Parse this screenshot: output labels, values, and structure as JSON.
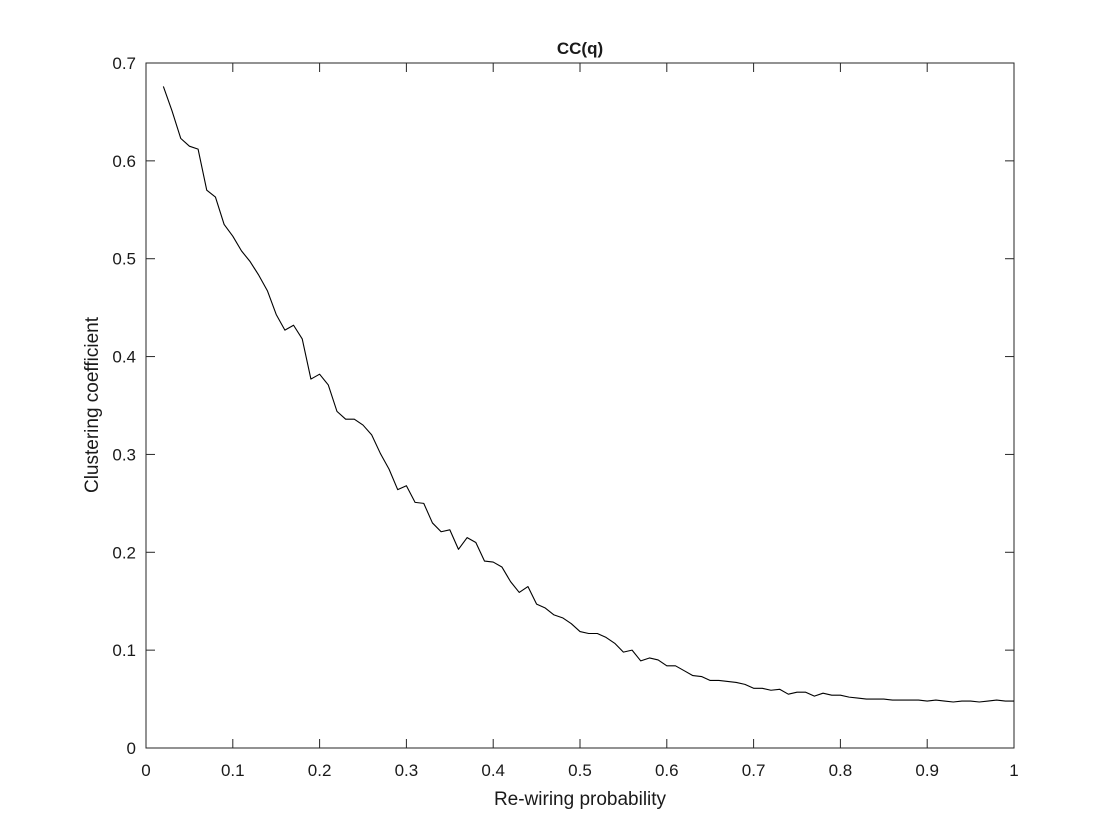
{
  "chart_data": {
    "type": "line",
    "title": "CC(q)",
    "xlabel": "Re-wiring probability",
    "ylabel": "Clustering coefficient",
    "xlim": [
      0,
      1
    ],
    "ylim": [
      0,
      0.7
    ],
    "xticks": [
      "0",
      "0.1",
      "0.2",
      "0.3",
      "0.4",
      "0.5",
      "0.6",
      "0.7",
      "0.8",
      "0.9",
      "1"
    ],
    "yticks": [
      "0",
      "0.1",
      "0.2",
      "0.3",
      "0.4",
      "0.5",
      "0.6",
      "0.7"
    ],
    "grid": false,
    "line_color": "#000000",
    "series": [
      {
        "x": [
          0.02,
          0.03,
          0.04,
          0.05,
          0.06,
          0.07,
          0.08,
          0.09,
          0.1,
          0.11,
          0.12,
          0.13,
          0.14,
          0.15,
          0.16,
          0.17,
          0.18,
          0.19,
          0.2,
          0.21,
          0.22,
          0.23,
          0.24,
          0.25,
          0.26,
          0.27,
          0.28,
          0.29,
          0.3,
          0.31,
          0.32,
          0.33,
          0.34,
          0.35,
          0.36,
          0.37,
          0.38,
          0.39,
          0.4,
          0.41,
          0.42,
          0.43,
          0.44,
          0.45,
          0.46,
          0.47,
          0.48,
          0.49,
          0.5,
          0.51,
          0.52,
          0.53,
          0.54,
          0.55,
          0.56,
          0.57,
          0.58,
          0.59,
          0.6,
          0.61,
          0.62,
          0.63,
          0.64,
          0.65,
          0.66,
          0.67,
          0.68,
          0.69,
          0.7,
          0.71,
          0.72,
          0.73,
          0.74,
          0.75,
          0.76,
          0.77,
          0.78,
          0.79,
          0.8,
          0.81,
          0.82,
          0.83,
          0.84,
          0.85,
          0.86,
          0.87,
          0.88,
          0.89,
          0.9,
          0.91,
          0.92,
          0.93,
          0.94,
          0.95,
          0.96,
          0.97,
          0.98,
          0.99,
          1.0
        ],
        "y": [
          0.676,
          0.651,
          0.623,
          0.615,
          0.612,
          0.57,
          0.563,
          0.535,
          0.523,
          0.508,
          0.497,
          0.483,
          0.467,
          0.443,
          0.427,
          0.432,
          0.418,
          0.377,
          0.382,
          0.371,
          0.344,
          0.336,
          0.336,
          0.33,
          0.32,
          0.301,
          0.285,
          0.264,
          0.268,
          0.251,
          0.25,
          0.23,
          0.221,
          0.223,
          0.203,
          0.215,
          0.21,
          0.191,
          0.19,
          0.185,
          0.17,
          0.159,
          0.165,
          0.147,
          0.143,
          0.136,
          0.133,
          0.127,
          0.119,
          0.117,
          0.117,
          0.113,
          0.107,
          0.098,
          0.1,
          0.089,
          0.092,
          0.09,
          0.084,
          0.084,
          0.079,
          0.074,
          0.073,
          0.069,
          0.069,
          0.068,
          0.067,
          0.065,
          0.061,
          0.061,
          0.059,
          0.06,
          0.055,
          0.057,
          0.057,
          0.053,
          0.056,
          0.054,
          0.054,
          0.052,
          0.051,
          0.05,
          0.05,
          0.05,
          0.049,
          0.049,
          0.049,
          0.049,
          0.048,
          0.049,
          0.048,
          0.047,
          0.048,
          0.048,
          0.047,
          0.048,
          0.049,
          0.048,
          0.048
        ]
      }
    ]
  }
}
